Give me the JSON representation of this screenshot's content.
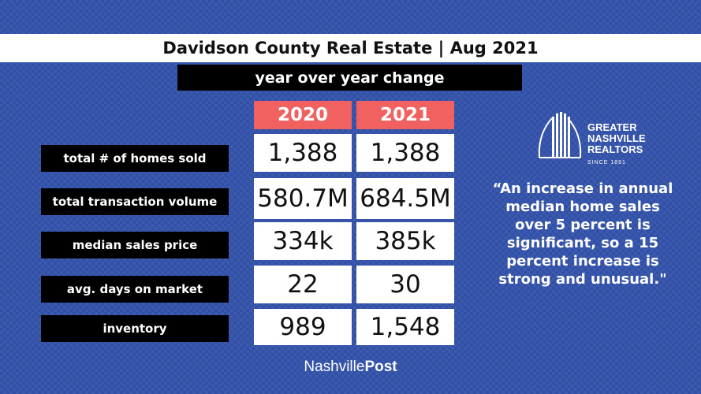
{
  "header": {
    "title": "Davidson County Real Estate | Aug 2021",
    "subtitle": "year over year change"
  },
  "table": {
    "columns": [
      "2020",
      "2021"
    ],
    "rows": [
      {
        "label": "total # of homes sold",
        "values": [
          "1,388",
          "1,388"
        ]
      },
      {
        "label": "total transaction volume",
        "values": [
          "580.7M",
          "684.5M"
        ]
      },
      {
        "label": "median sales price",
        "values": [
          "334k",
          "385k"
        ]
      },
      {
        "label": "avg. days on market",
        "values": [
          "22",
          "30"
        ]
      },
      {
        "label": "inventory",
        "values": [
          "989",
          "1,548"
        ]
      }
    ],
    "header_color": "#f0615f"
  },
  "logo": {
    "line1": "GREATER",
    "line2": "NASHVILLE",
    "line3": "REALTORS",
    "since": "SINCE 1891"
  },
  "quote": {
    "line1": "“An increase in annual",
    "line2": "median home sales",
    "line3": "over 5 percent is",
    "line4": "significant, so a 15",
    "line5": "percent increase is",
    "line6": "strong and unusual.\""
  },
  "footer": {
    "brand_part1": "Nashville",
    "brand_part2": "Post"
  },
  "colors": {
    "background": "#3150a8",
    "accent": "#f0615f"
  }
}
